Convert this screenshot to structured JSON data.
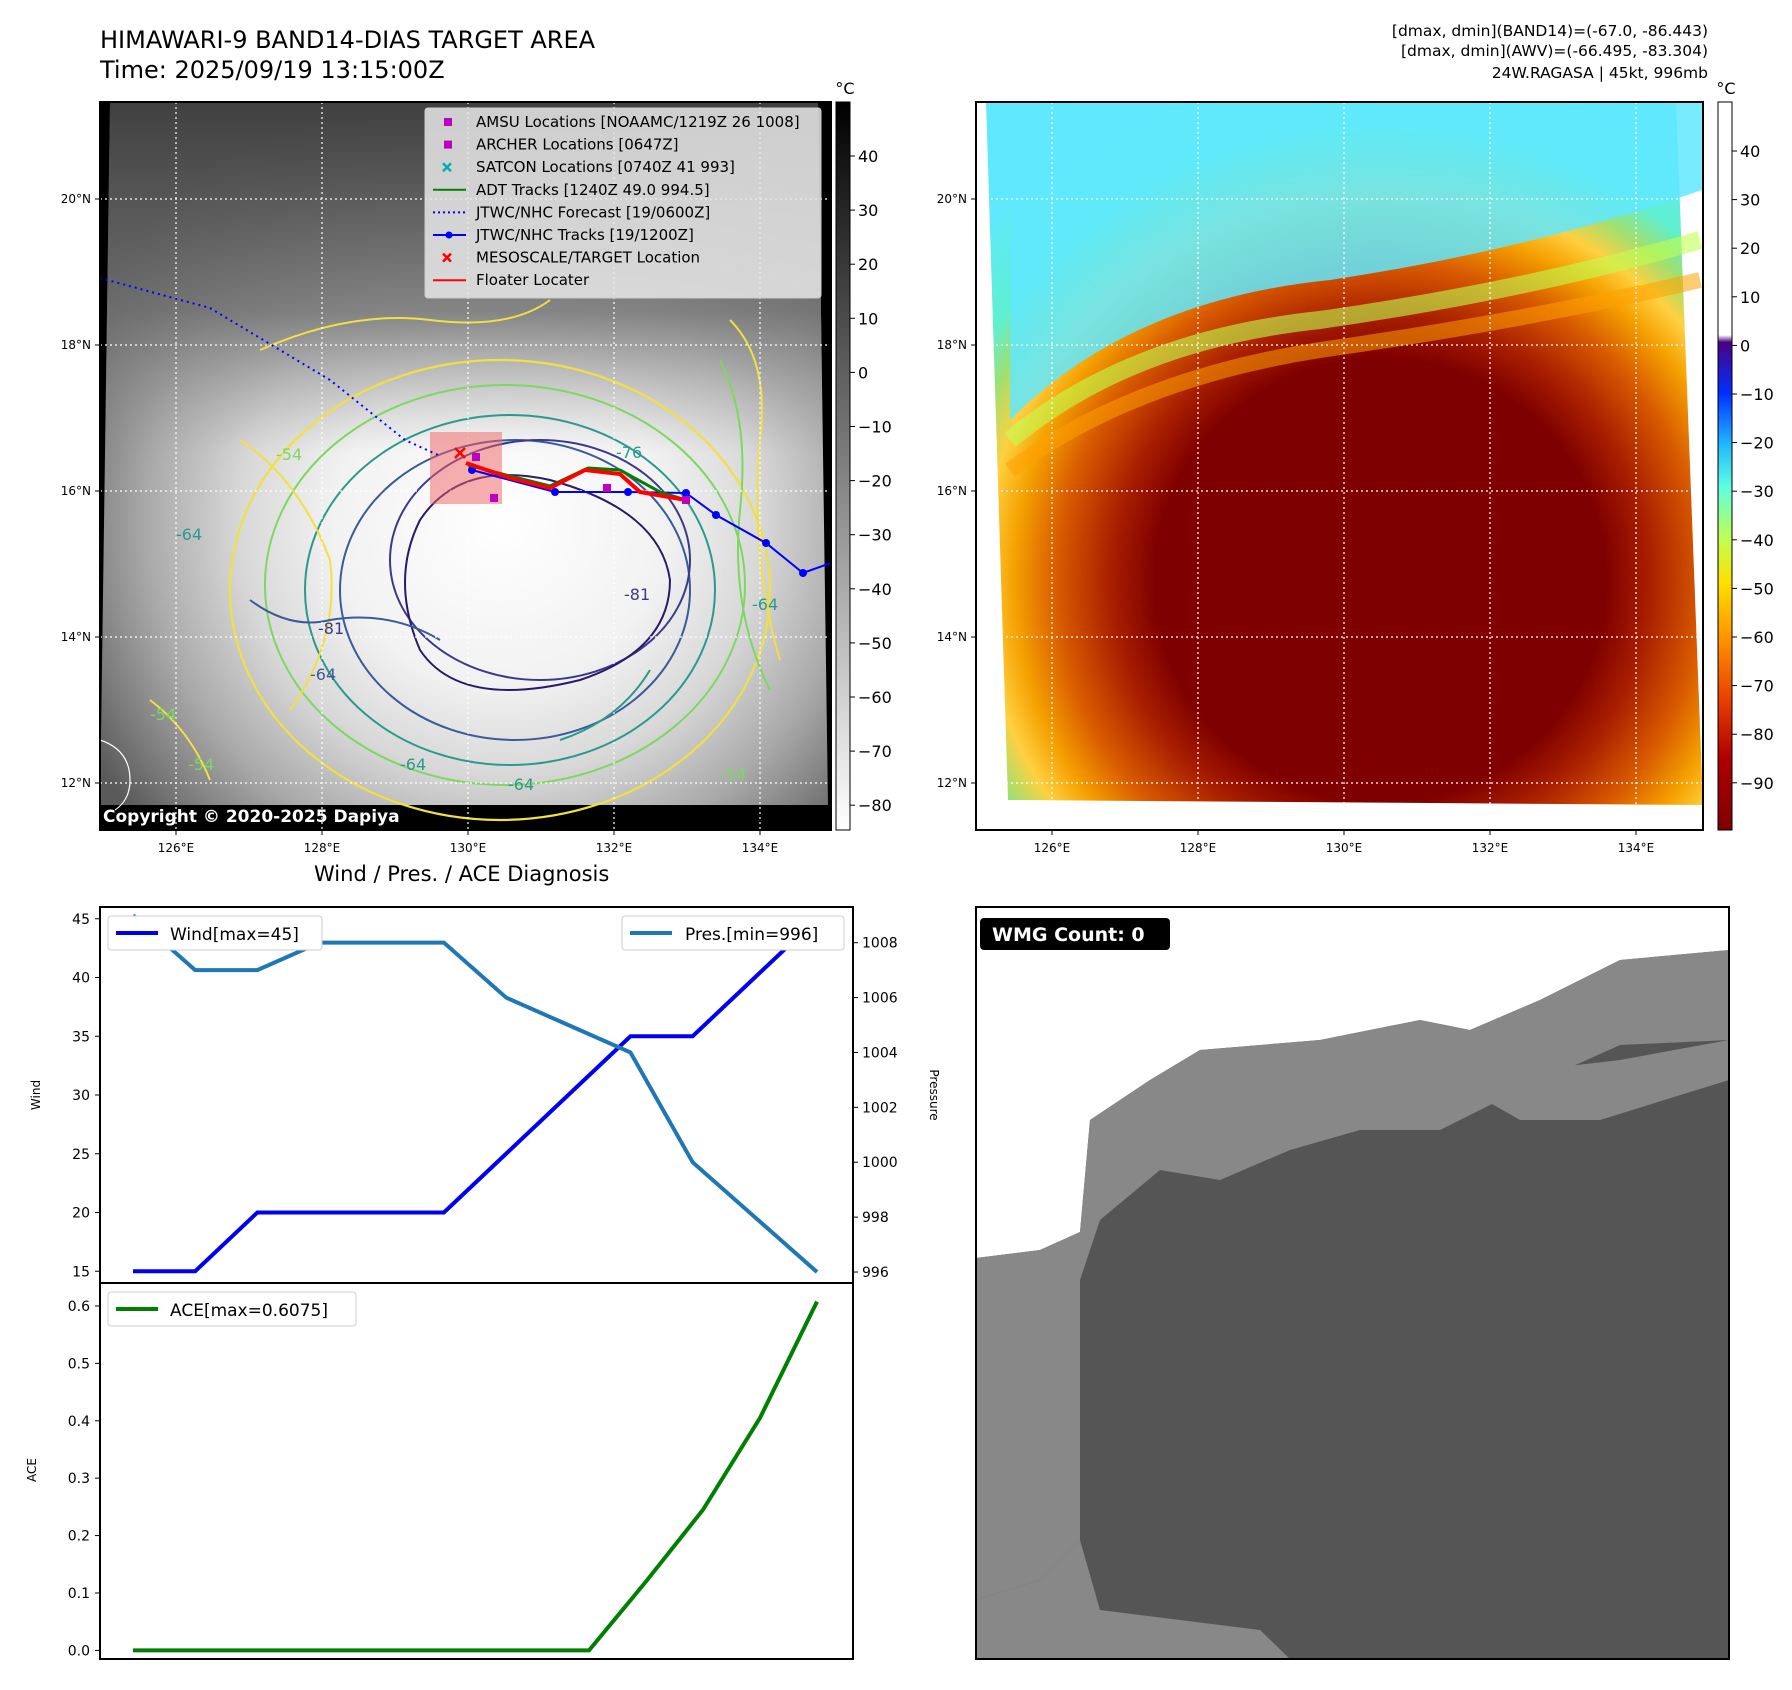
{
  "header": {
    "title_line1": "HIMAWARI-9 BAND14-DIAS TARGET AREA",
    "title_line2": "Time: 2025/09/19 13:15:00Z",
    "stats_line1": "[dmax, dmin](BAND14)=(-67.0, -86.443)",
    "stats_line2": "[dmax, dmin](AWV)=(-66.495, -83.304)",
    "stats_line3": "24W.RAGASA | 45kt, 996mb"
  },
  "maps": {
    "lat_ticks": [
      "20°N",
      "18°N",
      "16°N",
      "14°N",
      "12°N"
    ],
    "lon_ticks": [
      "126°E",
      "128°E",
      "130°E",
      "132°E",
      "134°E"
    ],
    "copyright": "Copyright © 2020-2025 Dapiya",
    "legend": [
      {
        "label": "AMSU Locations [NOAAMC/1219Z 26 1008]",
        "color": "#c000c0",
        "marker": "square"
      },
      {
        "label": "ARCHER Locations [0647Z]",
        "color": "#c000c0",
        "marker": "square"
      },
      {
        "label": "SATCON Locations [0740Z 41 993]",
        "color": "#00b0b0",
        "marker": "x"
      },
      {
        "label": "ADT Tracks [1240Z 49.0 994.5]",
        "color": "#008000",
        "marker": "line"
      },
      {
        "label": "JTWC/NHC Forecast [19/0600Z]",
        "color": "#0000ff",
        "marker": "dotted"
      },
      {
        "label": "JTWC/NHC Tracks [19/1200Z]",
        "color": "#0000ff",
        "marker": "line-dot"
      },
      {
        "label": "MESOSCALE/TARGET Location",
        "color": "#ff0000",
        "marker": "x"
      },
      {
        "label": "Floater Locater",
        "color": "#ff0000",
        "marker": "line"
      }
    ],
    "contour_labels": [
      "-76",
      "-81",
      "-81",
      "-64",
      "-64",
      "-54",
      "-54",
      "-64",
      "-54",
      "-64",
      "-64",
      "-54"
    ],
    "colorbar_left": {
      "unit": "°C",
      "ticks": [
        "40",
        "30",
        "20",
        "10",
        "0",
        "−10",
        "−20",
        "−30",
        "−40",
        "−50",
        "−60",
        "−70",
        "−80"
      ]
    },
    "colorbar_right": {
      "unit": "°C",
      "ticks": [
        "40",
        "30",
        "20",
        "10",
        "0",
        "−10",
        "−20",
        "−30",
        "−40",
        "−50",
        "−60",
        "−70",
        "−80",
        "−90"
      ]
    }
  },
  "wmg": {
    "label": "WMG Count: 0"
  },
  "chart_data": [
    {
      "type": "line",
      "title": "Wind / Pres. / ACE Diagnosis",
      "ylabel": "Wind",
      "y2label": "Pressure",
      "ylim": [
        14,
        46
      ],
      "y2lim": [
        995.6,
        1009.3
      ],
      "yticks": [
        15,
        20,
        25,
        30,
        35,
        40,
        45
      ],
      "y2ticks": [
        996,
        998,
        1000,
        1002,
        1004,
        1006,
        1008
      ],
      "series": [
        {
          "name": "Wind[max=45]",
          "axis": "left",
          "color": "#0000ee",
          "values": [
            15,
            15,
            20,
            20,
            20,
            20,
            25,
            30,
            35,
            35,
            40,
            45
          ]
        },
        {
          "name": "Pres.[min=996]",
          "axis": "right",
          "color": "#1f77b4",
          "values": [
            1009,
            1007,
            1007,
            1008,
            1008,
            1008,
            1006,
            1005,
            1004,
            1000,
            998,
            996
          ]
        }
      ],
      "legend": [
        "top-left",
        "top-right"
      ]
    },
    {
      "type": "line",
      "ylabel": "ACE",
      "ylim": [
        -0.015,
        0.64
      ],
      "yticks": [
        "0.0",
        "0.1",
        "0.2",
        "0.3",
        "0.4",
        "0.5",
        "0.6"
      ],
      "series": [
        {
          "name": "ACE[max=0.6075]",
          "color": "#008000",
          "values": [
            0,
            0,
            0,
            0,
            0,
            0,
            0,
            0,
            0,
            0.12,
            0.245,
            0.405,
            0.6075
          ]
        }
      ],
      "legend": "top-left"
    }
  ]
}
